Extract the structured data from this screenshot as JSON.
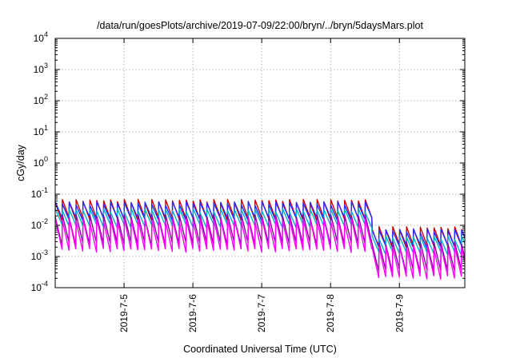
{
  "chart_data": {
    "type": "line",
    "title": "/data/run/goesPlots/archive/2019-07-09/22:00/bryn/../bryn/5daysMars.plot",
    "xlabel": "Coordinated Universal Time (UTC)",
    "ylabel": "cGy/day",
    "yscale": "log",
    "ylim": [
      0.0001,
      10000
    ],
    "xlim_days": [
      4.0,
      9.95
    ],
    "x_ticks": [
      {
        "label": "2019-7-5",
        "day": 5
      },
      {
        "label": "2019-7-6",
        "day": 6
      },
      {
        "label": "2019-7-7",
        "day": 7
      },
      {
        "label": "2019-7-8",
        "day": 8
      },
      {
        "label": "2019-7-9",
        "day": 9
      }
    ],
    "y_ticks": [
      {
        "base": "10",
        "exp": "-4",
        "value": 0.0001
      },
      {
        "base": "10",
        "exp": "-3",
        "value": 0.001
      },
      {
        "base": "10",
        "exp": "-2",
        "value": 0.01
      },
      {
        "base": "10",
        "exp": "-1",
        "value": 0.1
      },
      {
        "base": "10",
        "exp": "0",
        "value": 1
      },
      {
        "base": "10",
        "exp": "1",
        "value": 10
      },
      {
        "base": "10",
        "exp": "2",
        "value": 100
      },
      {
        "base": "10",
        "exp": "3",
        "value": 1000
      },
      {
        "base": "10",
        "exp": "4",
        "value": 10000
      }
    ],
    "grid": true,
    "legend": "none",
    "pattern": {
      "cycle_days": 0.1,
      "drop_day": 8.6,
      "peak_before": 0.06,
      "peak_after": 0.008
    },
    "series": [
      {
        "color": "#cc0000",
        "peak_scale": 1.2,
        "trough_ratio": 0.25
      },
      {
        "color": "#2a2aff",
        "peak_scale": 1.0,
        "trough_ratio": 0.3
      },
      {
        "color": "#00b0c8",
        "peak_scale": 0.6,
        "trough_ratio": 0.3
      },
      {
        "color": "#8a00a0",
        "peak_scale": 0.4,
        "trough_ratio": 0.12
      },
      {
        "color": "#ff00ff",
        "peak_scale": 0.3,
        "trough_ratio": 0.1
      }
    ]
  }
}
